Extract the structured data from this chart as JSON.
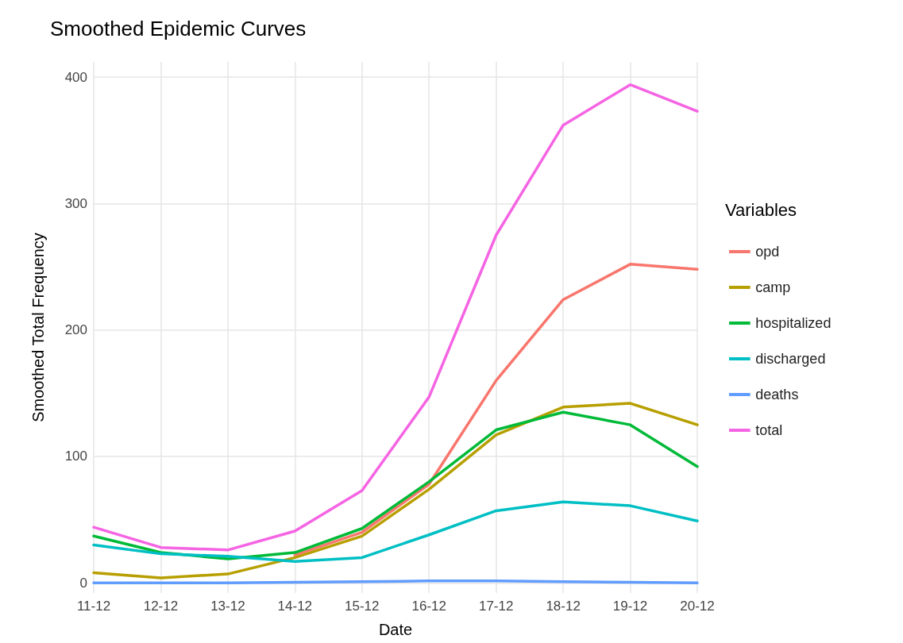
{
  "chart_data": {
    "type": "line",
    "title": "Smoothed Epidemic Curves",
    "xlabel": "Date",
    "ylabel": "Smoothed Total Frequency",
    "legend_title": "Variables",
    "categories": [
      "11-12",
      "12-12",
      "13-12",
      "14-12",
      "15-12",
      "16-12",
      "17-12",
      "18-12",
      "19-12",
      "20-12"
    ],
    "series": [
      {
        "name": "opd",
        "color": "#f8766d",
        "values": [
          null,
          null,
          null,
          22,
          40,
          78,
          160,
          224,
          252,
          248
        ]
      },
      {
        "name": "camp",
        "color": "#b79f00",
        "values": [
          8,
          4,
          7,
          20,
          37,
          74,
          117,
          139,
          142,
          125
        ]
      },
      {
        "name": "hospitalized",
        "color": "#00ba38",
        "values": [
          37,
          24,
          19,
          24,
          43,
          80,
          121,
          135,
          125,
          92
        ]
      },
      {
        "name": "discharged",
        "color": "#00bfc4",
        "values": [
          30,
          23,
          21,
          17,
          20,
          38,
          57,
          64,
          61,
          49
        ]
      },
      {
        "name": "deaths",
        "color": "#619cff",
        "values": [
          0,
          0,
          0,
          0.5,
          1,
          1.5,
          1.5,
          1,
          0.5,
          0
        ]
      },
      {
        "name": "total",
        "color": "#f564e3",
        "values": [
          44,
          28,
          26,
          41,
          73,
          147,
          275,
          362,
          394,
          373
        ]
      }
    ],
    "ylim": [
      -8,
      412
    ],
    "yticks": [
      0,
      100,
      200,
      300,
      400
    ],
    "grid": true,
    "legend": "right",
    "marker": "none",
    "line_style": "solid"
  }
}
